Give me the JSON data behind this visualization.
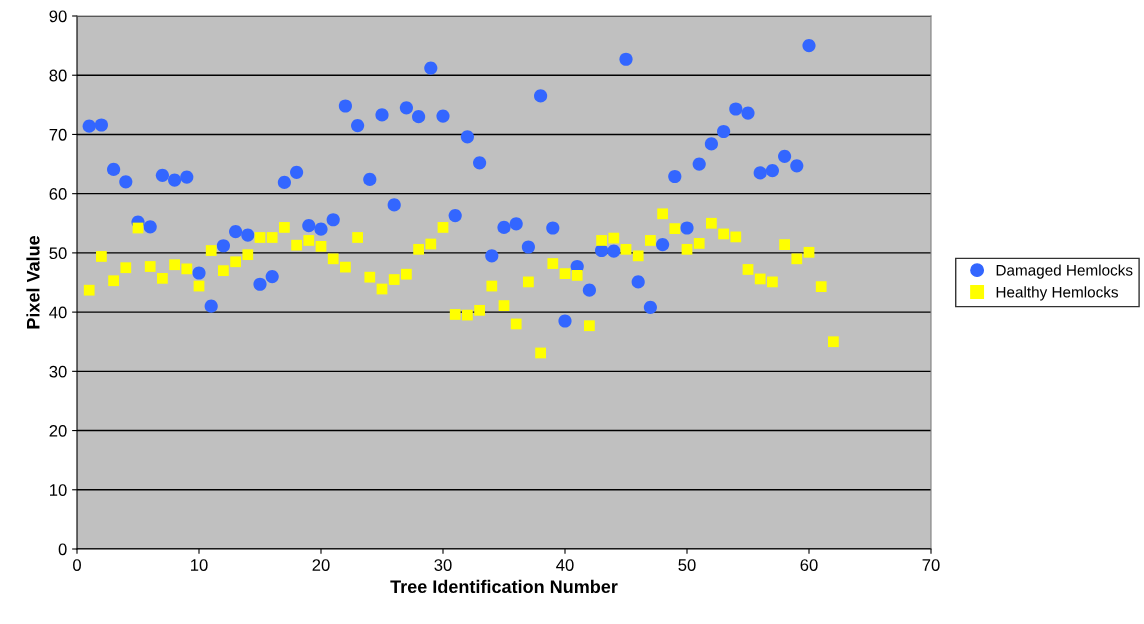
{
  "chart_data": {
    "type": "scatter",
    "xlabel": "Tree Identification Number",
    "ylabel": "Pixel Value",
    "xlim": [
      0,
      70
    ],
    "xticks": [
      0,
      10,
      20,
      30,
      40,
      50,
      60,
      70
    ],
    "ylim": [
      0,
      90
    ],
    "yticks": [
      0,
      10,
      20,
      30,
      40,
      50,
      60,
      70,
      80,
      90
    ],
    "grid": "y",
    "legend": "right",
    "series": [
      {
        "name": "Damaged Hemlocks",
        "color": "#3366ff",
        "marker": "circle",
        "x": [
          1,
          2,
          3,
          4,
          5,
          6,
          7,
          8,
          9,
          10,
          11,
          12,
          13,
          14,
          15,
          16,
          17,
          18,
          19,
          20,
          21,
          22,
          23,
          24,
          25,
          26,
          27,
          28,
          29,
          30,
          31,
          32,
          33,
          34,
          35,
          36,
          37,
          38,
          39,
          40,
          41,
          42,
          43,
          44,
          45,
          46,
          47,
          48,
          49,
          50,
          51,
          52,
          53,
          54,
          55,
          56,
          57,
          58,
          59,
          60
        ],
        "values": [
          71.4,
          71.6,
          64.1,
          62.0,
          55.2,
          54.4,
          63.1,
          62.3,
          62.8,
          46.6,
          41.0,
          51.2,
          53.6,
          53.0,
          44.7,
          46.0,
          61.9,
          63.6,
          54.6,
          54.0,
          55.6,
          74.8,
          71.5,
          62.4,
          73.3,
          58.1,
          74.5,
          73.0,
          81.2,
          73.1,
          56.3,
          69.6,
          65.2,
          49.5,
          54.3,
          54.9,
          51.0,
          76.5,
          54.2,
          38.5,
          47.7,
          43.7,
          50.4,
          50.3,
          82.7,
          45.1,
          40.8,
          51.4,
          62.9,
          54.2,
          65.0,
          68.4,
          70.5,
          74.3,
          73.6,
          63.5,
          63.9,
          66.3,
          64.7,
          85.0
        ]
      },
      {
        "name": "Healthy Hemlocks",
        "color": "#ffff00",
        "marker": "square",
        "x": [
          1,
          2,
          3,
          4,
          5,
          6,
          7,
          8,
          9,
          10,
          11,
          12,
          13,
          14,
          15,
          16,
          17,
          18,
          19,
          20,
          21,
          22,
          23,
          24,
          25,
          26,
          27,
          28,
          29,
          30,
          31,
          32,
          33,
          34,
          35,
          36,
          37,
          38,
          39,
          40,
          41,
          42,
          43,
          44,
          45,
          46,
          47,
          48,
          49,
          50,
          51,
          52,
          53,
          54,
          55,
          56,
          57,
          58,
          59,
          60,
          61,
          62
        ],
        "values": [
          43.7,
          49.4,
          45.3,
          47.5,
          54.2,
          47.7,
          45.7,
          48.0,
          47.3,
          44.4,
          50.4,
          47.0,
          48.5,
          49.7,
          52.6,
          52.6,
          54.3,
          51.3,
          52.1,
          51.1,
          49.0,
          47.6,
          52.6,
          45.9,
          43.9,
          45.5,
          46.4,
          50.6,
          51.5,
          54.3,
          39.6,
          39.5,
          40.3,
          44.4,
          41.1,
          38.0,
          45.1,
          33.1,
          48.2,
          46.5,
          46.2,
          37.7,
          52.1,
          52.5,
          50.6,
          49.5,
          52.1,
          56.6,
          54.1,
          50.6,
          51.6,
          55.0,
          53.2,
          52.7,
          47.2,
          45.6,
          45.1,
          51.4,
          49.0,
          50.1,
          44.3,
          35.0
        ]
      }
    ]
  }
}
